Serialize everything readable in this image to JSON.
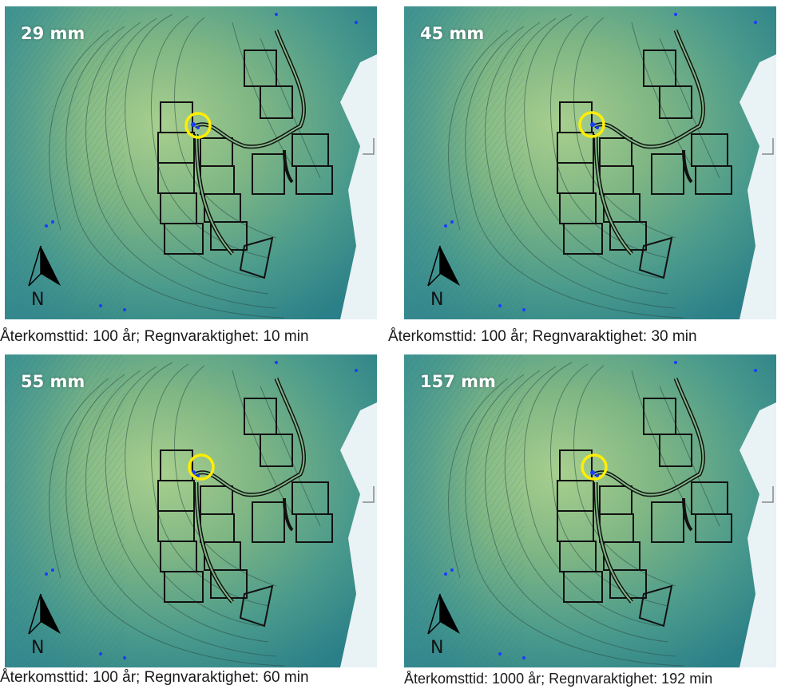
{
  "panels": [
    {
      "rain": "29 mm",
      "caption": "Återkomsttid: 100 år; Regnvaraktighet: 10 min"
    },
    {
      "rain": "45 mm",
      "caption": "Återkomsttid: 100 år; Regnvaraktighet: 30 min"
    },
    {
      "rain": "55 mm",
      "caption": "Återkomsttid: 100 år; Regnvaraktighet: 60 min"
    },
    {
      "rain": "157 mm",
      "caption": "Återkomsttid: 1000 år; Regnvaraktighet: 192 min"
    }
  ],
  "north_label": "N",
  "colors": {
    "terrain_high": "#9ec98a",
    "terrain_low": "#2f8a8c",
    "water": "#1a3cff",
    "highlight": "#ffee00"
  },
  "icons": [
    "north-arrow-icon",
    "highlight-circle-icon"
  ]
}
